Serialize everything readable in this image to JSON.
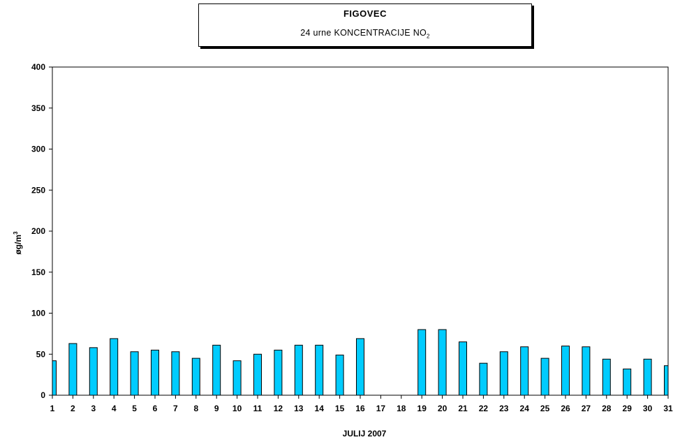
{
  "chart_data": {
    "type": "bar",
    "title": "FIGOVEC",
    "subtitle": {
      "text": "24 urne KONCENTRACIJE NO",
      "subscript": "2"
    },
    "xlabel": "JULIJ 2007",
    "ylabel": {
      "text": "øg/m",
      "superscript": "3"
    },
    "ylim": [
      0,
      400
    ],
    "yticks": [
      0,
      50,
      100,
      150,
      200,
      250,
      300,
      350,
      400
    ],
    "grid": false,
    "bar_color": "#00CCFF",
    "categories": [
      "1",
      "2",
      "3",
      "4",
      "5",
      "6",
      "7",
      "8",
      "9",
      "10",
      "11",
      "12",
      "13",
      "14",
      "15",
      "16",
      "17",
      "18",
      "19",
      "20",
      "21",
      "22",
      "23",
      "24",
      "25",
      "26",
      "27",
      "28",
      "29",
      "30",
      "31"
    ],
    "values": [
      42,
      63,
      58,
      69,
      53,
      55,
      53,
      45,
      61,
      42,
      50,
      55,
      61,
      61,
      49,
      69,
      null,
      null,
      80,
      80,
      65,
      39,
      53,
      59,
      45,
      60,
      59,
      44,
      32,
      44,
      36
    ]
  }
}
